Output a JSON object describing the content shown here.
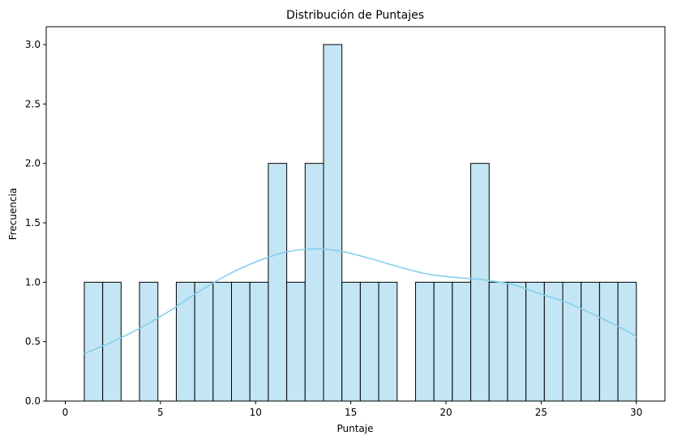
{
  "chart_data": {
    "type": "bar",
    "title": "Distribución de Puntajes",
    "xlabel": "Puntaje",
    "ylabel": "Frecuencia",
    "xlim": [
      -1.0,
      31.5
    ],
    "ylim": [
      0,
      3.15
    ],
    "x_ticks": [
      0,
      5,
      10,
      15,
      20,
      25,
      30
    ],
    "y_ticks": [
      0.0,
      0.5,
      1.0,
      1.5,
      2.0,
      2.5,
      3.0
    ],
    "x_tick_labels": [
      "0",
      "5",
      "10",
      "15",
      "20",
      "25",
      "30"
    ],
    "y_tick_labels": [
      "0.0",
      "0.5",
      "1.0",
      "1.5",
      "2.0",
      "2.5",
      "3.0"
    ],
    "bins": {
      "start": 1,
      "end": 30,
      "count": 30,
      "counts": [
        1,
        1,
        0,
        1,
        0,
        1,
        1,
        1,
        1,
        1,
        2,
        1,
        2,
        3,
        1,
        1,
        1,
        0,
        1,
        1,
        1,
        2,
        1,
        1,
        1,
        1,
        1,
        1,
        1,
        1
      ]
    },
    "kde": {
      "x": [
        1,
        2.5,
        4,
        5.5,
        7,
        8.5,
        10,
        11.5,
        13,
        14.5,
        16,
        17.5,
        19,
        20.5,
        22,
        23.5,
        25,
        26.5,
        28,
        29.5,
        30
      ],
      "y": [
        0.4,
        0.5,
        0.62,
        0.76,
        0.92,
        1.06,
        1.17,
        1.25,
        1.28,
        1.26,
        1.2,
        1.13,
        1.07,
        1.04,
        1.02,
        0.98,
        0.9,
        0.82,
        0.71,
        0.59,
        0.54
      ]
    },
    "colors": {
      "bar_fill": "#c3e5f4",
      "bar_edge": "#000000",
      "kde_line": "#87ceeb"
    },
    "grid": false,
    "legend": "none"
  }
}
